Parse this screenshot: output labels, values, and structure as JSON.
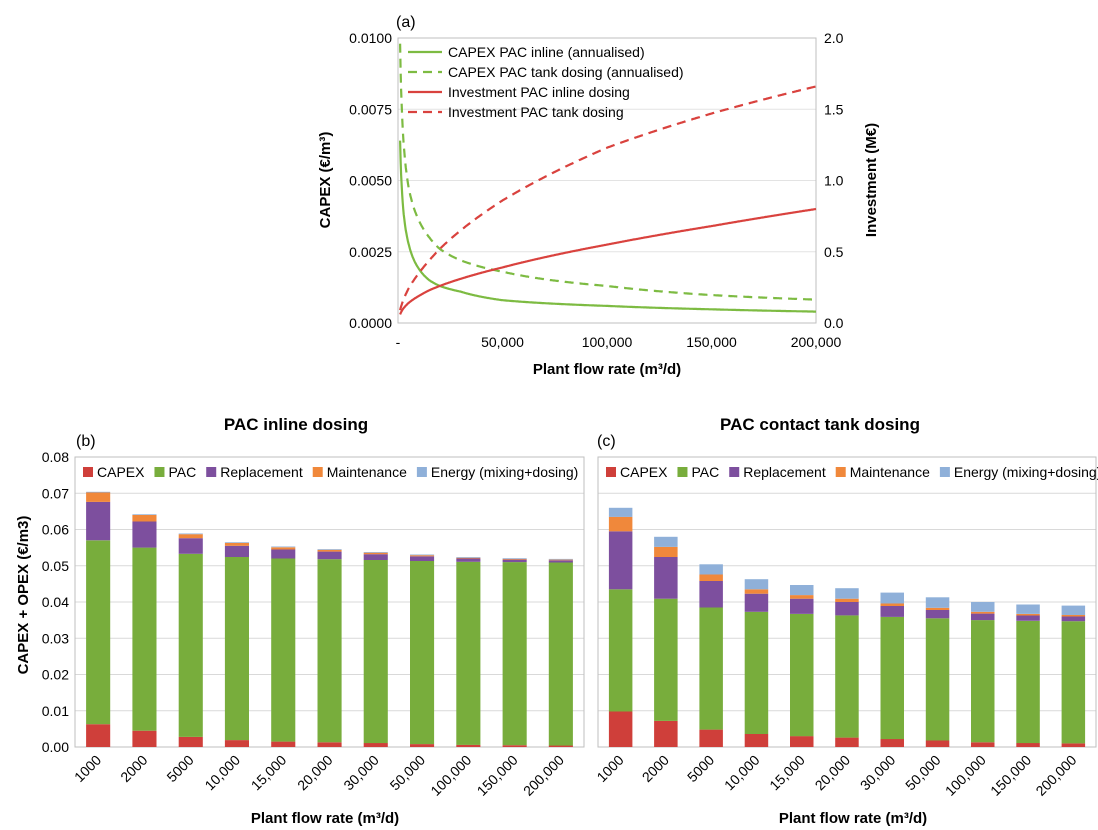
{
  "chart_data": [
    {
      "panel": "(a)",
      "type": "line",
      "title": "",
      "xlabel": "Plant flow rate (m³/d)",
      "ylabel": "CAPEX (€/m³)",
      "y2label": "Investment (M€)",
      "xlim": [
        0,
        200000
      ],
      "ylim": [
        0,
        0.01
      ],
      "y2lim": [
        0,
        2.0
      ],
      "xticks": [
        "-",
        "50,000",
        "100,000",
        "150,000",
        "200,000"
      ],
      "yticks": [
        "0.0000",
        "0.0025",
        "0.0050",
        "0.0075",
        "0.0100"
      ],
      "y2ticks": [
        "0.0",
        "0.5",
        "1.0",
        "1.5",
        "2.0"
      ],
      "grid": true,
      "legend_position": "top-left",
      "x": [
        1000,
        2000,
        5000,
        10000,
        15000,
        20000,
        30000,
        50000,
        100000,
        150000,
        200000
      ],
      "series": [
        {
          "name": "CAPEX PAC inline (annualised)",
          "axis": "left",
          "color": "#7dbb42",
          "dash": false,
          "values": [
            0.0064,
            0.0045,
            0.0028,
            0.0019,
            0.0015,
            0.0013,
            0.0011,
            0.0008,
            0.0006,
            0.00048,
            0.0004
          ]
        },
        {
          "name": "CAPEX PAC tank dosing (annualised)",
          "axis": "left",
          "color": "#7dbb42",
          "dash": true,
          "values": [
            0.0098,
            0.0072,
            0.0048,
            0.0036,
            0.003,
            0.0026,
            0.0022,
            0.0018,
            0.0013,
            0.00098,
            0.00082
          ]
        },
        {
          "name": "Investment PAC inline dosing",
          "axis": "right",
          "color": "#d9423e",
          "dash": false,
          "values": [
            0.06,
            0.09,
            0.14,
            0.19,
            0.23,
            0.26,
            0.31,
            0.39,
            0.55,
            0.68,
            0.8
          ]
        },
        {
          "name": "Investment PAC tank dosing",
          "axis": "right",
          "color": "#d9423e",
          "dash": true,
          "values": [
            0.09,
            0.14,
            0.24,
            0.35,
            0.44,
            0.52,
            0.65,
            0.86,
            1.23,
            1.47,
            1.66
          ]
        }
      ]
    },
    {
      "panel": "(b)",
      "type": "bar",
      "title": "PAC inline dosing",
      "xlabel": "Plant flow rate (m³/d)",
      "ylabel": "CAPEX + OPEX (€/m3)",
      "ylim": [
        0,
        0.08
      ],
      "yticks": [
        "0.00",
        "0.01",
        "0.02",
        "0.03",
        "0.04",
        "0.05",
        "0.06",
        "0.07",
        "0.08"
      ],
      "categories": [
        "1000",
        "2000",
        "5000",
        "10,000",
        "15,000",
        "20,000",
        "30,000",
        "50,000",
        "100,000",
        "150,000",
        "200,000"
      ],
      "stacked": true,
      "grid": true,
      "legend_position": "top",
      "series": [
        {
          "name": "CAPEX",
          "color": "#cf3f3a",
          "values": [
            0.0063,
            0.0045,
            0.0028,
            0.0019,
            0.0015,
            0.0013,
            0.0011,
            0.0008,
            0.0006,
            0.0005,
            0.0004
          ]
        },
        {
          "name": "PAC",
          "color": "#78ad3c",
          "values": [
            0.0507,
            0.0505,
            0.0505,
            0.0505,
            0.0505,
            0.0505,
            0.0505,
            0.0505,
            0.0505,
            0.0505,
            0.0505
          ]
        },
        {
          "name": "Replacement",
          "color": "#7d4f9e",
          "values": [
            0.0106,
            0.0072,
            0.0043,
            0.0031,
            0.0025,
            0.0021,
            0.0016,
            0.0013,
            0.0009,
            0.0007,
            0.0006
          ]
        },
        {
          "name": "Maintenance",
          "color": "#f0883b",
          "values": [
            0.0026,
            0.0018,
            0.0011,
            0.0008,
            0.0006,
            0.0005,
            0.0004,
            0.0003,
            0.0002,
            0.0002,
            0.0002
          ]
        },
        {
          "name": "Energy (mixing+dosing)",
          "color": "#8fb0d9",
          "values": [
            0.0002,
            0.0002,
            0.0002,
            0.0002,
            0.0002,
            0.0002,
            0.0002,
            0.0002,
            0.0002,
            0.0002,
            0.0002
          ]
        }
      ]
    },
    {
      "panel": "(c)",
      "type": "bar",
      "title": "PAC contact tank dosing",
      "xlabel": "Plant flow rate (m³/d)",
      "ylabel": "",
      "ylim": [
        0,
        0.08
      ],
      "categories": [
        "1000",
        "2000",
        "5000",
        "10,000",
        "15,000",
        "20,000",
        "30,000",
        "50,000",
        "100,000",
        "150,000",
        "200,000"
      ],
      "stacked": true,
      "grid": true,
      "legend_position": "top",
      "series": [
        {
          "name": "CAPEX",
          "color": "#cf3f3a",
          "values": [
            0.0098,
            0.0072,
            0.0048,
            0.0036,
            0.003,
            0.0026,
            0.0022,
            0.0018,
            0.0013,
            0.0011,
            0.001
          ]
        },
        {
          "name": "PAC",
          "color": "#78ad3c",
          "values": [
            0.0337,
            0.0337,
            0.0337,
            0.0337,
            0.0337,
            0.0337,
            0.0337,
            0.0337,
            0.0337,
            0.0337,
            0.0337
          ]
        },
        {
          "name": "Replacement",
          "color": "#7d4f9e",
          "values": [
            0.016,
            0.0115,
            0.0073,
            0.005,
            0.0042,
            0.0037,
            0.003,
            0.0023,
            0.0018,
            0.0015,
            0.0013
          ]
        },
        {
          "name": "Maintenance",
          "color": "#f0883b",
          "values": [
            0.004,
            0.0028,
            0.0018,
            0.0012,
            0.001,
            0.0009,
            0.0007,
            0.0006,
            0.0005,
            0.0004,
            0.0004
          ]
        },
        {
          "name": "Energy (mixing+dosing)",
          "color": "#8fb0d9",
          "values": [
            0.0025,
            0.0028,
            0.0028,
            0.0028,
            0.0028,
            0.0029,
            0.003,
            0.0029,
            0.0027,
            0.0026,
            0.0026
          ]
        }
      ]
    }
  ]
}
